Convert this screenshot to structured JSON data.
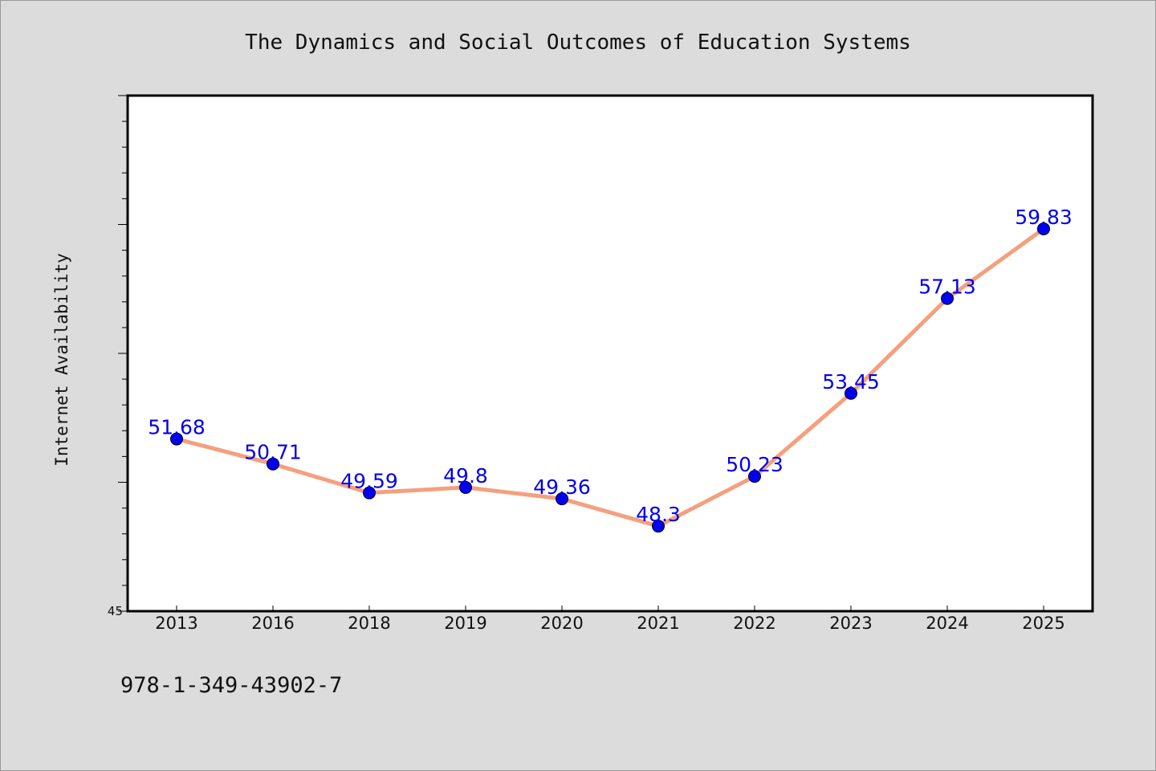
{
  "chart_data": {
    "type": "line",
    "title": "The Dynamics and Social Outcomes of Education Systems",
    "xlabel": "",
    "ylabel": "Internet Availability",
    "categories": [
      "2013",
      "2016",
      "2018",
      "2019",
      "2020",
      "2021",
      "2022",
      "2023",
      "2024",
      "2025"
    ],
    "values": [
      51.68,
      50.71,
      49.59,
      49.8,
      49.36,
      48.3,
      50.23,
      53.45,
      57.13,
      59.83
    ],
    "data_labels": [
      "51.68",
      "50.71",
      "49.59",
      "49.8",
      "49.36",
      "48.3",
      "50.23",
      "53.45",
      "57.13",
      "59.83"
    ],
    "ylim": [
      45,
      65
    ],
    "y_tick_labels": [
      "45"
    ],
    "grid": false,
    "legend": "none",
    "line_color": "#f4a07e",
    "marker_color": "#0000ee",
    "label_color": "#0000ee"
  },
  "footer": {
    "isbn": "978-1-349-43902-7"
  },
  "colors": {
    "background": "#dcdcdc",
    "plot_background": "#ffffff",
    "axis": "#000000"
  }
}
